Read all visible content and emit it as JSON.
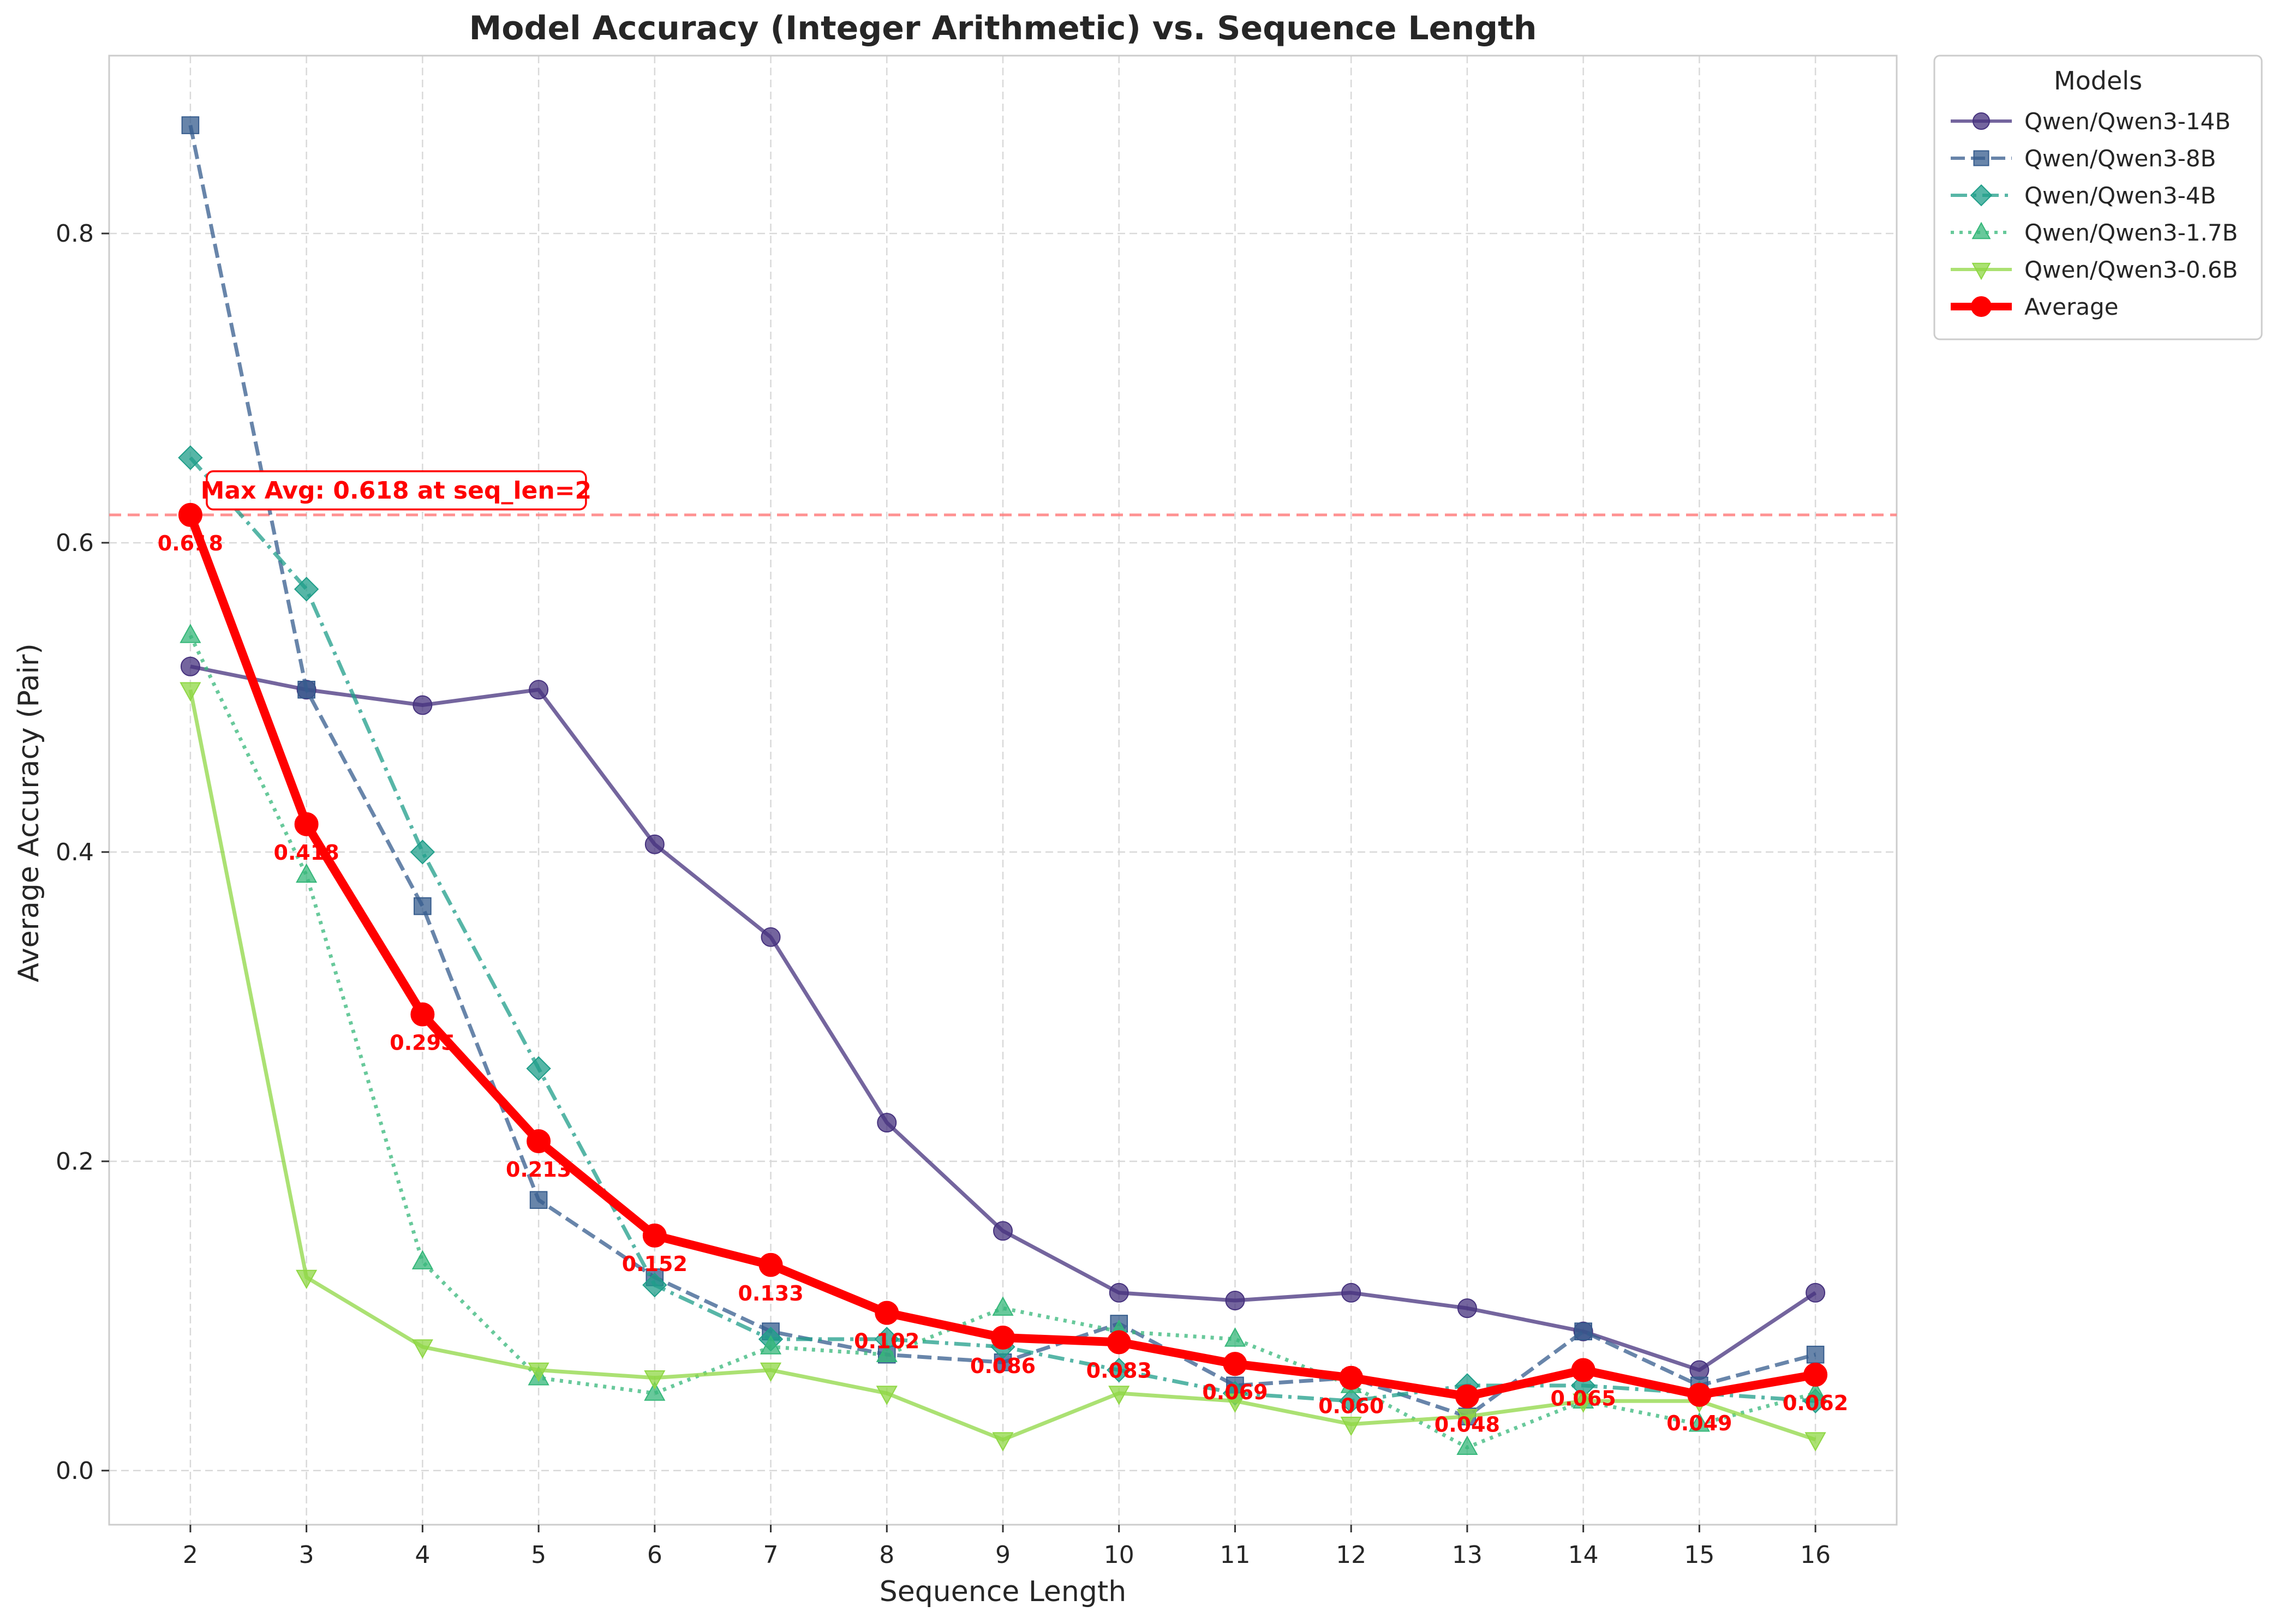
{
  "chart_data": {
    "type": "line",
    "title": "Model Accuracy (Integer Arithmetic) vs. Sequence Length",
    "xlabel": "Sequence Length",
    "ylabel": "Average Accuracy (Pair)",
    "x": [
      2,
      3,
      4,
      5,
      6,
      7,
      8,
      9,
      10,
      11,
      12,
      13,
      14,
      15,
      16
    ],
    "xlim": [
      1.3,
      16.7
    ],
    "ylim": [
      -0.035,
      0.915
    ],
    "yticks": [
      0.0,
      0.2,
      0.4,
      0.6,
      0.8
    ],
    "ytick_labels": [
      "0.0",
      "0.2",
      "0.4",
      "0.6",
      "0.8"
    ],
    "xtick_labels": [
      "2",
      "3",
      "4",
      "5",
      "6",
      "7",
      "8",
      "9",
      "10",
      "11",
      "12",
      "13",
      "14",
      "15",
      "16"
    ],
    "grid": true,
    "legend_title": "Models",
    "legend_placement": "outside-right-top",
    "series": [
      {
        "name": "Qwen/Qwen3-14B",
        "color": "#46327e",
        "linestyle": "solid",
        "marker": "circle",
        "values": [
          0.52,
          0.505,
          0.495,
          0.505,
          0.405,
          0.345,
          0.225,
          0.155,
          0.115,
          0.11,
          0.115,
          0.105,
          0.09,
          0.065,
          0.115
        ]
      },
      {
        "name": "Qwen/Qwen3-8B",
        "color": "#365c8d",
        "linestyle": "dashed",
        "marker": "square",
        "values": [
          0.87,
          0.505,
          0.365,
          0.175,
          0.125,
          0.09,
          0.075,
          0.07,
          0.095,
          0.055,
          0.06,
          0.035,
          0.09,
          0.055,
          0.075
        ]
      },
      {
        "name": "Qwen/Qwen3-4B",
        "color": "#1f9e89",
        "linestyle": "dashdot",
        "marker": "diamond",
        "values": [
          0.655,
          0.57,
          0.4,
          0.26,
          0.12,
          0.085,
          0.085,
          0.08,
          0.065,
          0.05,
          0.045,
          0.055,
          0.055,
          0.05,
          0.045
        ]
      },
      {
        "name": "Qwen/Qwen3-1.7B",
        "color": "#35b779",
        "linestyle": "dotted",
        "marker": "triangle-up",
        "values": [
          0.54,
          0.385,
          0.135,
          0.06,
          0.05,
          0.08,
          0.075,
          0.105,
          0.09,
          0.085,
          0.055,
          0.015,
          0.045,
          0.03,
          0.05
        ]
      },
      {
        "name": "Qwen/Qwen3-0.6B",
        "color": "#8fd744",
        "linestyle": "solid",
        "marker": "triangle-down",
        "values": [
          0.505,
          0.125,
          0.08,
          0.065,
          0.06,
          0.065,
          0.05,
          0.02,
          0.05,
          0.045,
          0.03,
          0.035,
          0.045,
          0.045,
          0.02
        ]
      },
      {
        "name": "Average",
        "color": "#ff0000",
        "linestyle": "solid",
        "marker": "circle",
        "bold": true,
        "values": [
          0.618,
          0.418,
          0.295,
          0.213,
          0.152,
          0.133,
          0.102,
          0.086,
          0.083,
          0.069,
          0.06,
          0.048,
          0.065,
          0.049,
          0.062
        ],
        "data_labels": [
          "0.618",
          "0.418",
          "0.295",
          "0.213",
          "0.152",
          "0.133",
          "0.102",
          "0.086",
          "0.083",
          "0.069",
          "0.060",
          "0.048",
          "0.065",
          "0.049",
          "0.062"
        ]
      }
    ],
    "reference_line": {
      "y": 0.618,
      "color": "#ff7f7f",
      "style": "dashed"
    },
    "annotation": {
      "text": "Max Avg: 0.618 at seq_len=2",
      "color": "#ff0000"
    }
  }
}
